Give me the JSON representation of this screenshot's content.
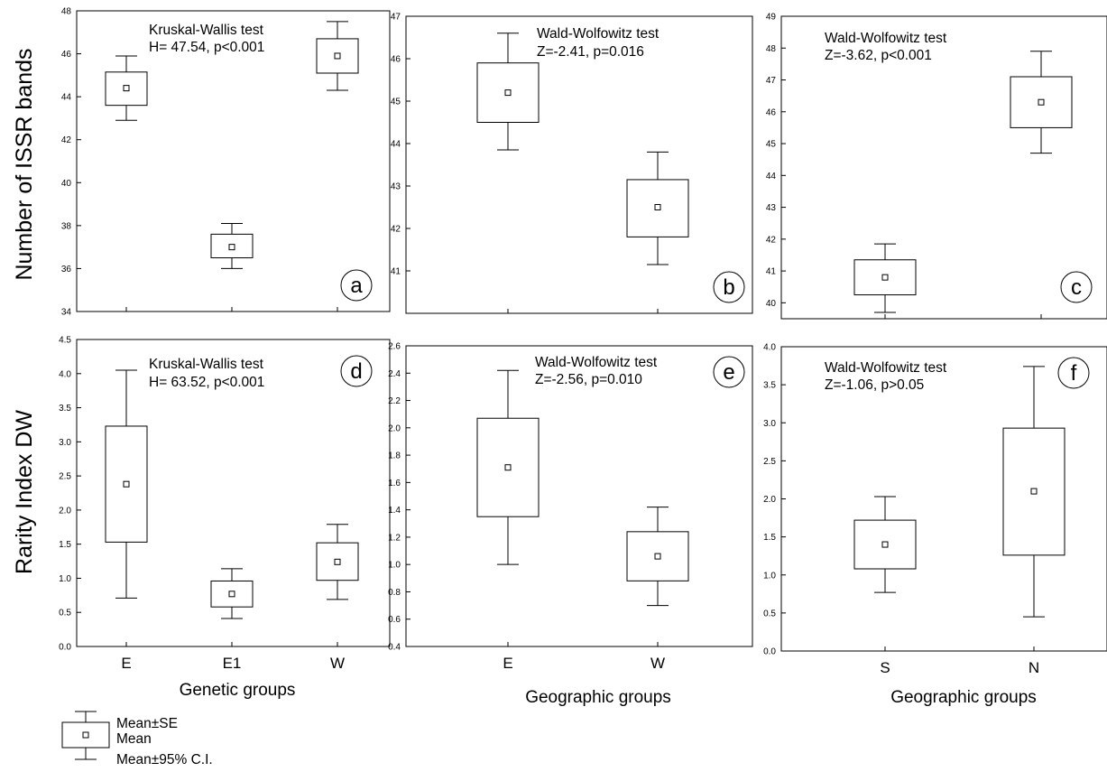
{
  "y_titles": [
    "Number of ISSR bands",
    "Rarity Index DW"
  ],
  "x_titles": [
    "Genetic groups",
    "Geographic groups",
    "Geographic groups"
  ],
  "legend": {
    "box": "Mean±SE",
    "point": "Mean",
    "whisker": "Mean±95% C.I."
  },
  "chart_data": [
    {
      "type": "box",
      "panel": "a",
      "ylim": [
        34,
        48
      ],
      "yticks": [
        34,
        36,
        38,
        40,
        42,
        44,
        46,
        48
      ],
      "test_name": "Kruskal-Wallis test",
      "test_stat": "H= 47.54, p<0.001",
      "categories": [
        "E",
        "E1",
        "W"
      ],
      "show_categories": false,
      "series": [
        {
          "category": "E",
          "mean": 44.4,
          "se_low": 43.6,
          "se_high": 45.15,
          "ci_low": 42.9,
          "ci_high": 45.9
        },
        {
          "category": "E1",
          "mean": 37.0,
          "se_low": 36.5,
          "se_high": 37.6,
          "ci_low": 36.0,
          "ci_high": 38.1
        },
        {
          "category": "W",
          "mean": 45.9,
          "se_low": 45.1,
          "se_high": 46.7,
          "ci_low": 44.3,
          "ci_high": 47.5
        }
      ]
    },
    {
      "type": "box",
      "panel": "b",
      "ylim": [
        40,
        47
      ],
      "yticks": [
        41,
        42,
        43,
        44,
        45,
        46,
        47
      ],
      "test_name": "Wald-Wolfowitz test",
      "test_stat": "Z=-2.41, p=0.016",
      "categories": [
        "E",
        "W"
      ],
      "show_categories": false,
      "series": [
        {
          "category": "E",
          "mean": 45.2,
          "se_low": 44.5,
          "se_high": 45.9,
          "ci_low": 43.85,
          "ci_high": 46.6
        },
        {
          "category": "W",
          "mean": 42.5,
          "se_low": 41.8,
          "se_high": 43.15,
          "ci_low": 41.15,
          "ci_high": 43.8
        }
      ]
    },
    {
      "type": "box",
      "panel": "c",
      "ylim": [
        39.5,
        49
      ],
      "yticks": [
        40,
        41,
        42,
        43,
        44,
        45,
        46,
        47,
        48,
        49
      ],
      "test_name": "Wald-Wolfowitz test",
      "test_stat": "Z=-3.62, p<0.001",
      "categories": [
        "S",
        "N"
      ],
      "show_categories": false,
      "series": [
        {
          "category": "S",
          "mean": 40.8,
          "se_low": 40.25,
          "se_high": 41.35,
          "ci_low": 39.7,
          "ci_high": 41.85
        },
        {
          "category": "N",
          "mean": 46.3,
          "se_low": 45.5,
          "se_high": 47.1,
          "ci_low": 44.7,
          "ci_high": 47.9
        }
      ]
    },
    {
      "type": "box",
      "panel": "d",
      "ylim": [
        0,
        4.5
      ],
      "yticks": [
        "0.0",
        "0.5",
        "1.0",
        "1.5",
        "2.0",
        "2.5",
        "3.0",
        "3.5",
        "4.0",
        "4.5"
      ],
      "test_name": "Kruskal-Wallis test",
      "test_stat": "H= 63.52, p<0.001",
      "categories": [
        "E",
        "E1",
        "W"
      ],
      "show_categories": true,
      "series": [
        {
          "category": "E",
          "mean": 2.38,
          "se_low": 1.53,
          "se_high": 3.23,
          "ci_low": 0.71,
          "ci_high": 4.05
        },
        {
          "category": "E1",
          "mean": 0.77,
          "se_low": 0.58,
          "se_high": 0.96,
          "ci_low": 0.41,
          "ci_high": 1.14
        },
        {
          "category": "W",
          "mean": 1.24,
          "se_low": 0.97,
          "se_high": 1.52,
          "ci_low": 0.69,
          "ci_high": 1.79
        }
      ]
    },
    {
      "type": "box",
      "panel": "e",
      "ylim": [
        0.4,
        2.6
      ],
      "yticks": [
        "0.4",
        "0.6",
        "0.8",
        "1.0",
        "1.2",
        "1.4",
        "1.6",
        "1.8",
        "2.0",
        "2.2",
        "2.4",
        "2.6"
      ],
      "test_name": "Wald-Wolfowitz test",
      "test_stat": "Z=-2.56, p=0.010",
      "categories": [
        "E",
        "W"
      ],
      "show_categories": true,
      "series": [
        {
          "category": "E",
          "mean": 1.71,
          "se_low": 1.35,
          "se_high": 2.07,
          "ci_low": 1.0,
          "ci_high": 2.42
        },
        {
          "category": "W",
          "mean": 1.06,
          "se_low": 0.88,
          "se_high": 1.24,
          "ci_low": 0.7,
          "ci_high": 1.42
        }
      ]
    },
    {
      "type": "box",
      "panel": "f",
      "ylim": [
        0,
        4
      ],
      "yticks": [
        "0.0",
        "0.5",
        "1.0",
        "1.5",
        "2.0",
        "2.5",
        "3.0",
        "3.5",
        "4.0"
      ],
      "test_name": "Wald-Wolfowitz test",
      "test_stat": "Z=-1.06, p>0.05",
      "categories": [
        "S",
        "N"
      ],
      "show_categories": true,
      "series": [
        {
          "category": "S",
          "mean": 1.4,
          "se_low": 1.08,
          "se_high": 1.72,
          "ci_low": 0.77,
          "ci_high": 2.03
        },
        {
          "category": "N",
          "mean": 2.1,
          "se_low": 1.26,
          "se_high": 2.93,
          "ci_low": 0.45,
          "ci_high": 3.74
        }
      ]
    }
  ]
}
